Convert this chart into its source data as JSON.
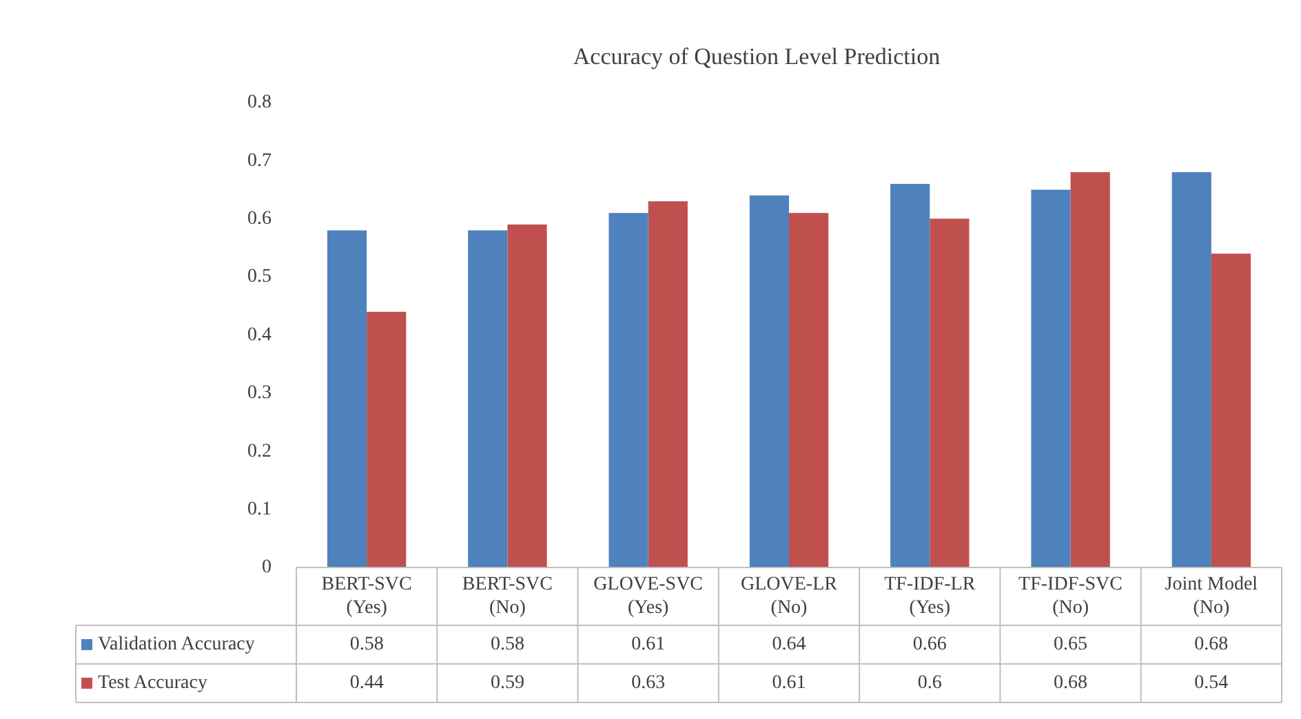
{
  "chart_data": {
    "type": "bar",
    "title": "Accuracy of Question Level Prediction",
    "categories": [
      "BERT-SVC (Yes)",
      "BERT-SVC (No)",
      "GLOVE-SVC (Yes)",
      "GLOVE-LR (No)",
      "TF-IDF-LR (Yes)",
      "TF-IDF-SVC (No)",
      "Joint Model (No)"
    ],
    "series": [
      {
        "name": "Validation Accuracy",
        "color": "#4f81bd",
        "values": [
          0.58,
          0.58,
          0.61,
          0.64,
          0.66,
          0.65,
          0.68
        ]
      },
      {
        "name": "Test Accuracy",
        "color": "#c0504d",
        "values": [
          0.44,
          0.59,
          0.63,
          0.61,
          0.6,
          0.68,
          0.54
        ]
      }
    ],
    "ylim": [
      0,
      0.8
    ],
    "yticks": [
      0,
      0.1,
      0.2,
      0.3,
      0.4,
      0.5,
      0.6,
      0.7,
      0.8
    ],
    "grid": false,
    "legend": "bottom",
    "data_labels": true
  }
}
